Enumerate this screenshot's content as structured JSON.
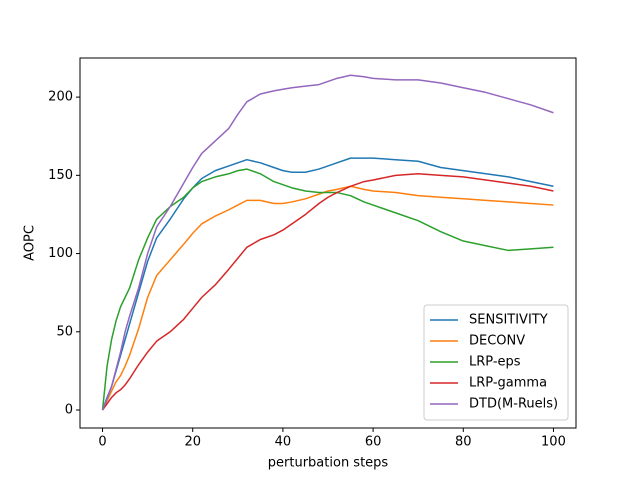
{
  "chart_data": {
    "type": "line",
    "xlabel": "perturbation steps",
    "ylabel": "AOPC",
    "x": [
      0,
      1,
      2,
      3,
      4,
      5,
      6,
      8,
      10,
      12,
      15,
      18,
      20,
      22,
      25,
      28,
      30,
      32,
      35,
      38,
      40,
      42,
      45,
      48,
      50,
      52,
      55,
      58,
      60,
      65,
      70,
      75,
      80,
      85,
      90,
      95,
      100
    ],
    "series": [
      {
        "name": "SENSITIVITY",
        "color": "#1f77b4",
        "values": [
          0,
          8,
          15,
          25,
          35,
          45,
          55,
          75,
          95,
          110,
          122,
          135,
          142,
          148,
          153,
          156,
          158,
          160,
          158,
          155,
          153,
          152,
          152,
          154,
          156,
          158,
          161,
          161,
          161,
          160,
          159,
          155,
          153,
          151,
          149,
          146,
          143
        ]
      },
      {
        "name": "DECONV",
        "color": "#ff7f0e",
        "values": [
          0,
          6,
          12,
          18,
          22,
          28,
          35,
          52,
          72,
          86,
          96,
          106,
          113,
          119,
          124,
          128,
          131,
          134,
          134,
          132,
          132,
          133,
          135,
          138,
          140,
          141,
          143,
          141,
          140,
          139,
          137,
          136,
          135,
          134,
          133,
          132,
          131
        ]
      },
      {
        "name": "LRP-eps",
        "color": "#2ca02c",
        "values": [
          0,
          28,
          45,
          57,
          66,
          72,
          78,
          96,
          110,
          122,
          130,
          136,
          142,
          146,
          149,
          151,
          153,
          154,
          151,
          146,
          144,
          142,
          140,
          139,
          139,
          139,
          137,
          133,
          131,
          126,
          121,
          114,
          108,
          105,
          102,
          103,
          104
        ]
      },
      {
        "name": "LRP-gamma",
        "color": "#d62728",
        "values": [
          0,
          4,
          8,
          11,
          13,
          16,
          20,
          29,
          37,
          44,
          50,
          58,
          65,
          72,
          80,
          90,
          97,
          104,
          109,
          112,
          115,
          119,
          125,
          132,
          136,
          139,
          143,
          146,
          147,
          150,
          151,
          150,
          149,
          147,
          145,
          143,
          140
        ]
      },
      {
        "name": "DTD(M-Ruels)",
        "color": "#9467bd",
        "values": [
          0,
          7,
          15,
          26,
          37,
          50,
          60,
          78,
          100,
          117,
          130,
          145,
          155,
          164,
          172,
          180,
          189,
          197,
          202,
          204,
          205,
          206,
          207,
          208,
          210,
          212,
          214,
          213,
          212,
          211,
          211,
          209,
          206,
          203,
          199,
          195,
          190
        ]
      }
    ],
    "xlim": [
      -5,
      105
    ],
    "ylim": [
      -11.5,
      225
    ],
    "xticks": [
      0,
      20,
      40,
      60,
      80,
      100
    ],
    "yticks": [
      0,
      50,
      100,
      150,
      200
    ],
    "legend": "lower right",
    "grid": false
  }
}
